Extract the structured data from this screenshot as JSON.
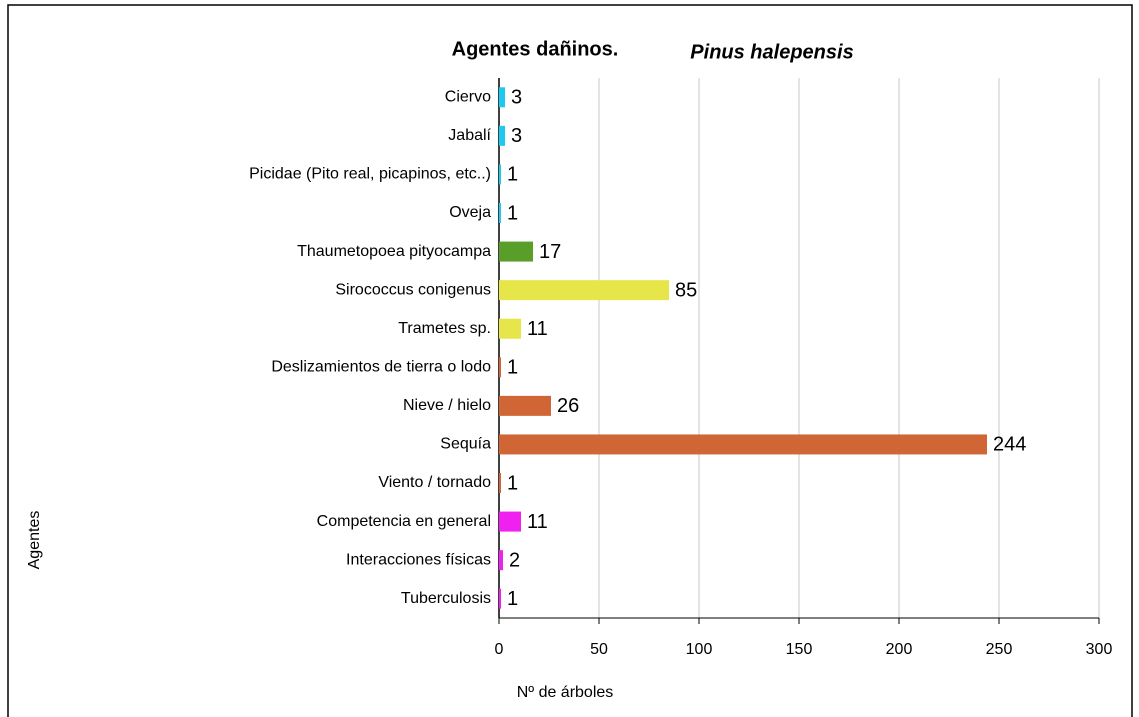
{
  "chart_data": {
    "type": "barh",
    "title": "Agentes dañinos.",
    "subtitle": "Pinus halepensis",
    "ylabel": "Agentes",
    "xlabel": "Nº de árboles",
    "categories": [
      "Ciervo",
      "Jabalí",
      "Picidae (Pito real, picapinos, etc..)",
      "Oveja",
      "Thaumetopoea pityocampa",
      "Sirococcus conigenus",
      "Trametes sp.",
      "Deslizamientos de tierra o lodo",
      "Nieve / hielo",
      "Sequía",
      "Viento / tornado",
      "Competencia en general",
      "Interacciones físicas",
      "Tuberculosis"
    ],
    "values": [
      3,
      3,
      1,
      1,
      17,
      85,
      11,
      1,
      26,
      244,
      1,
      11,
      2,
      1
    ],
    "colors": [
      "#1ec8f0",
      "#1ec8f0",
      "#1ec8f0",
      "#1ec8f0",
      "#5a9e2a",
      "#e6e64a",
      "#e6e64a",
      "#d06635",
      "#d06635",
      "#d06635",
      "#d06635",
      "#f020f0",
      "#f020f0",
      "#f020f0"
    ],
    "xlim": [
      0,
      300
    ],
    "xticks": [
      0,
      50,
      100,
      150,
      200,
      250,
      300
    ],
    "grid": true
  }
}
